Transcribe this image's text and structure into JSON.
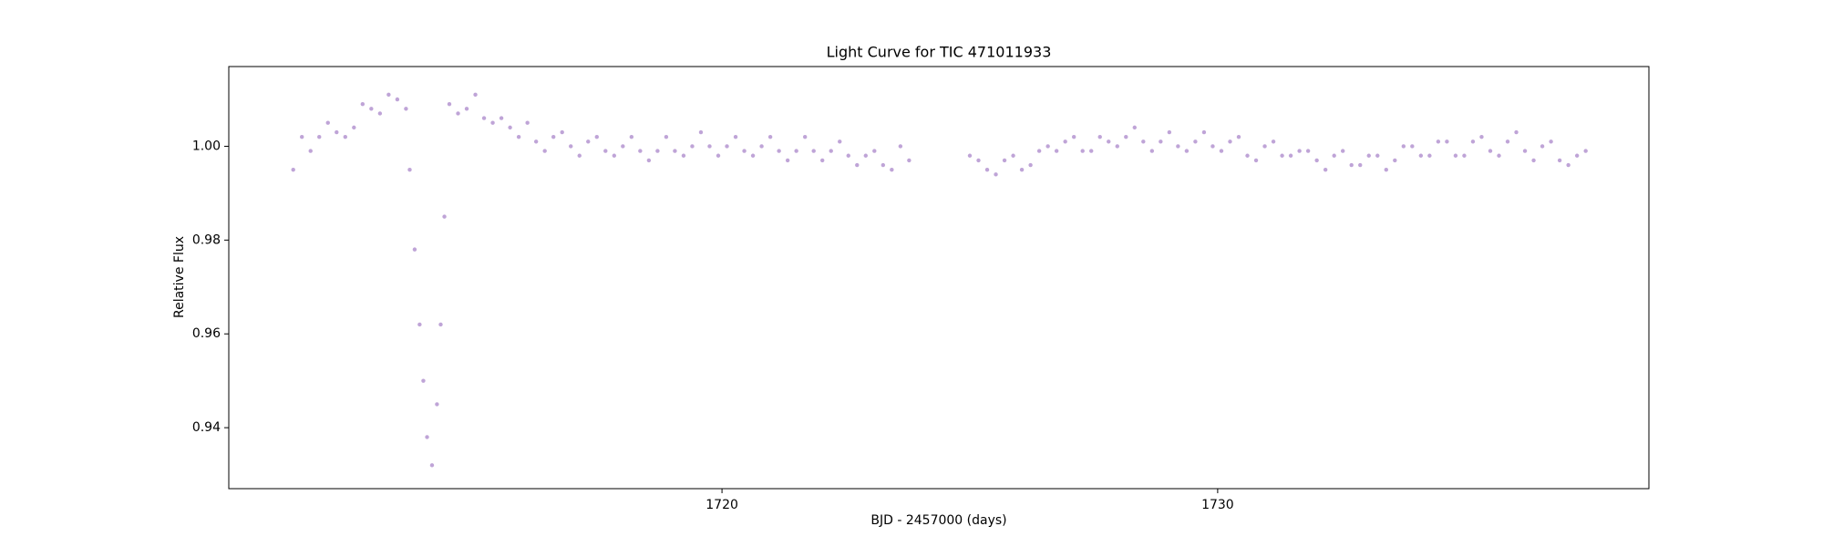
{
  "chart_data": {
    "type": "scatter",
    "title": "Light Curve for TIC 471011933",
    "xlabel": "BJD - 2457000 (days)",
    "ylabel": "Relative Flux",
    "color": "#9467bd",
    "xlim": [
      1710.05,
      1738.7
    ],
    "ylim": [
      0.927,
      1.017
    ],
    "xticks": [
      1720,
      1730
    ],
    "yticks": [
      0.94,
      0.96,
      0.98,
      {
        "value": 1.0,
        "label": "1.00"
      }
    ],
    "x": [
      1711.35,
      1711.525,
      1711.7,
      1711.875,
      1712.05,
      1712.225,
      1712.4,
      1712.575,
      1712.75,
      1712.925,
      1713.1,
      1713.275,
      1713.45,
      1713.625,
      1713.7,
      1713.8,
      1713.9,
      1713.975,
      1714.05,
      1714.15,
      1714.25,
      1714.325,
      1714.4,
      1714.5,
      1714.675,
      1714.85,
      1715.025,
      1715.2,
      1715.375,
      1715.55,
      1715.725,
      1715.9,
      1716.075,
      1716.25,
      1716.425,
      1716.6,
      1716.775,
      1716.95,
      1717.125,
      1717.3,
      1717.475,
      1717.65,
      1717.825,
      1718.0,
      1718.175,
      1718.35,
      1718.525,
      1718.7,
      1718.875,
      1719.05,
      1719.225,
      1719.4,
      1719.575,
      1719.75,
      1719.925,
      1720.1,
      1720.275,
      1720.45,
      1720.625,
      1720.8,
      1720.975,
      1721.15,
      1721.325,
      1721.5,
      1721.675,
      1721.85,
      1722.025,
      1722.2,
      1722.375,
      1722.55,
      1722.725,
      1722.9,
      1723.075,
      1723.25,
      1723.425,
      1723.6,
      1723.775,
      1725.0,
      1725.175,
      1725.35,
      1725.525,
      1725.7,
      1725.875,
      1726.05,
      1726.225,
      1726.4,
      1726.575,
      1726.75,
      1726.925,
      1727.1,
      1727.275,
      1727.45,
      1727.625,
      1727.8,
      1727.975,
      1728.15,
      1728.325,
      1728.5,
      1728.675,
      1728.85,
      1729.025,
      1729.2,
      1729.375,
      1729.55,
      1729.725,
      1729.9,
      1730.075,
      1730.25,
      1730.425,
      1730.6,
      1730.775,
      1730.95,
      1731.125,
      1731.3,
      1731.475,
      1731.65,
      1731.825,
      1732.0,
      1732.175,
      1732.35,
      1732.525,
      1732.7,
      1732.875,
      1733.05,
      1733.225,
      1733.4,
      1733.575,
      1733.75,
      1733.925,
      1734.1,
      1734.275,
      1734.45,
      1734.625,
      1734.8,
      1734.975,
      1735.15,
      1735.325,
      1735.5,
      1735.675,
      1735.85,
      1736.025,
      1736.2,
      1736.375,
      1736.55,
      1736.725,
      1736.9,
      1737.075,
      1737.25,
      1737.425
    ],
    "values": [
      0.995,
      1.002,
      0.999,
      1.002,
      1.005,
      1.003,
      1.002,
      1.004,
      1.009,
      1.008,
      1.007,
      1.011,
      1.01,
      1.008,
      0.995,
      0.978,
      0.962,
      0.95,
      0.938,
      0.932,
      0.945,
      0.962,
      0.985,
      1.009,
      1.007,
      1.008,
      1.011,
      1.006,
      1.005,
      1.006,
      1.004,
      1.002,
      1.005,
      1.001,
      0.999,
      1.002,
      1.003,
      1.0,
      0.998,
      1.001,
      1.002,
      0.999,
      0.998,
      1.0,
      1.002,
      0.999,
      0.997,
      0.999,
      1.002,
      0.999,
      0.998,
      1.0,
      1.003,
      1.0,
      0.998,
      1.0,
      1.002,
      0.999,
      0.998,
      1.0,
      1.002,
      0.999,
      0.997,
      0.999,
      1.002,
      0.999,
      0.997,
      0.999,
      1.001,
      0.998,
      0.996,
      0.998,
      0.999,
      0.996,
      0.995,
      1.0,
      0.997,
      0.998,
      0.997,
      0.995,
      0.994,
      0.997,
      0.998,
      0.995,
      0.996,
      0.999,
      1.0,
      0.999,
      1.001,
      1.002,
      0.999,
      0.999,
      1.002,
      1.001,
      1.0,
      1.002,
      1.004,
      1.001,
      0.999,
      1.001,
      1.003,
      1.0,
      0.999,
      1.001,
      1.003,
      1.0,
      0.999,
      1.001,
      1.002,
      0.998,
      0.997,
      1.0,
      1.001,
      0.998,
      0.998,
      0.999,
      0.999,
      0.997,
      0.995,
      0.998,
      0.999,
      0.996,
      0.996,
      0.998,
      0.998,
      0.995,
      0.997,
      1.0,
      1.0,
      0.998,
      0.998,
      1.001,
      1.001,
      0.998,
      0.998,
      1.001,
      1.002,
      0.999,
      0.998,
      1.001,
      1.003,
      0.999,
      0.997,
      1.0,
      1.001,
      0.997,
      0.996,
      0.998,
      0.999
    ]
  }
}
